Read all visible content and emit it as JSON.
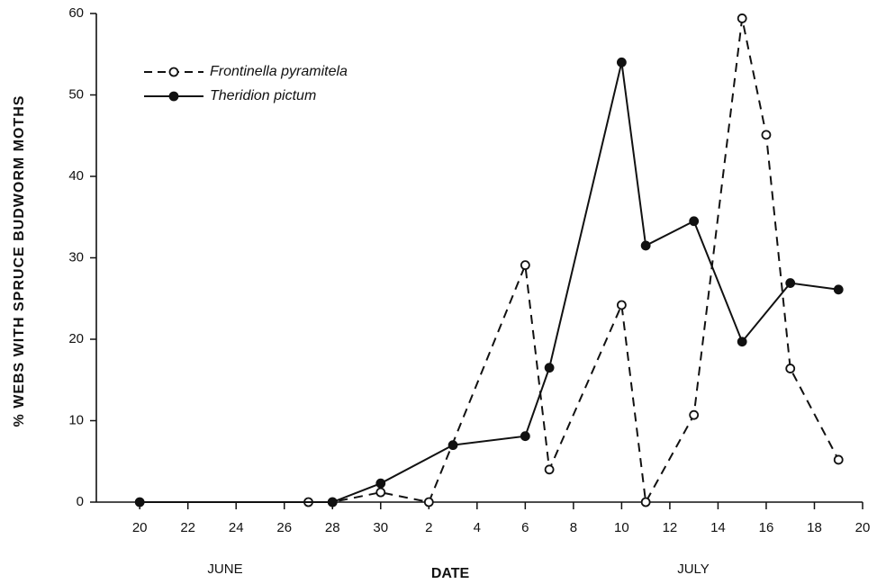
{
  "chart_data": {
    "type": "line",
    "y_label": "% WEBS WITH SPRUCE BUDWORM MOTHS",
    "x_label": "DATE",
    "annotations": [
      "JUNE",
      "JULY"
    ],
    "xlim": [
      18.2,
      50
    ],
    "xticks": [
      20,
      22,
      24,
      26,
      28,
      30,
      {
        "value": 32,
        "label": "2"
      },
      {
        "value": 34,
        "label": "4"
      },
      {
        "value": 36,
        "label": "6"
      },
      {
        "value": 38,
        "label": "8"
      },
      {
        "value": 40,
        "label": "10"
      },
      {
        "value": 42,
        "label": "12"
      },
      {
        "value": 44,
        "label": "14"
      },
      {
        "value": 46,
        "label": "16"
      },
      {
        "value": 48,
        "label": "18"
      },
      {
        "value": 50,
        "label": "20"
      }
    ],
    "ylim": [
      0,
      60
    ],
    "yticks": [
      0,
      10,
      20,
      30,
      40,
      50,
      60
    ],
    "series": [
      {
        "name": "Frontinella pyramitela",
        "color": "#111111",
        "line_style": "dashed",
        "marker": "open",
        "x": [
          27,
          28,
          30,
          32,
          36,
          37,
          40,
          41,
          43,
          45,
          46,
          47,
          49
        ],
        "values": [
          0,
          0,
          1.2,
          0,
          29.1,
          4,
          24.2,
          0,
          10.7,
          59.4,
          45.1,
          16.4,
          5.2
        ]
      },
      {
        "name": "Theridion pictum",
        "color": "#111111",
        "line_style": "solid",
        "marker": "filled",
        "x": [
          20,
          28,
          30,
          33,
          36,
          37,
          40,
          41,
          43,
          45,
          47,
          49
        ],
        "values": [
          0,
          0,
          2.3,
          7,
          8.1,
          16.5,
          54,
          31.5,
          34.5,
          19.7,
          26.9,
          26.1
        ]
      }
    ]
  }
}
